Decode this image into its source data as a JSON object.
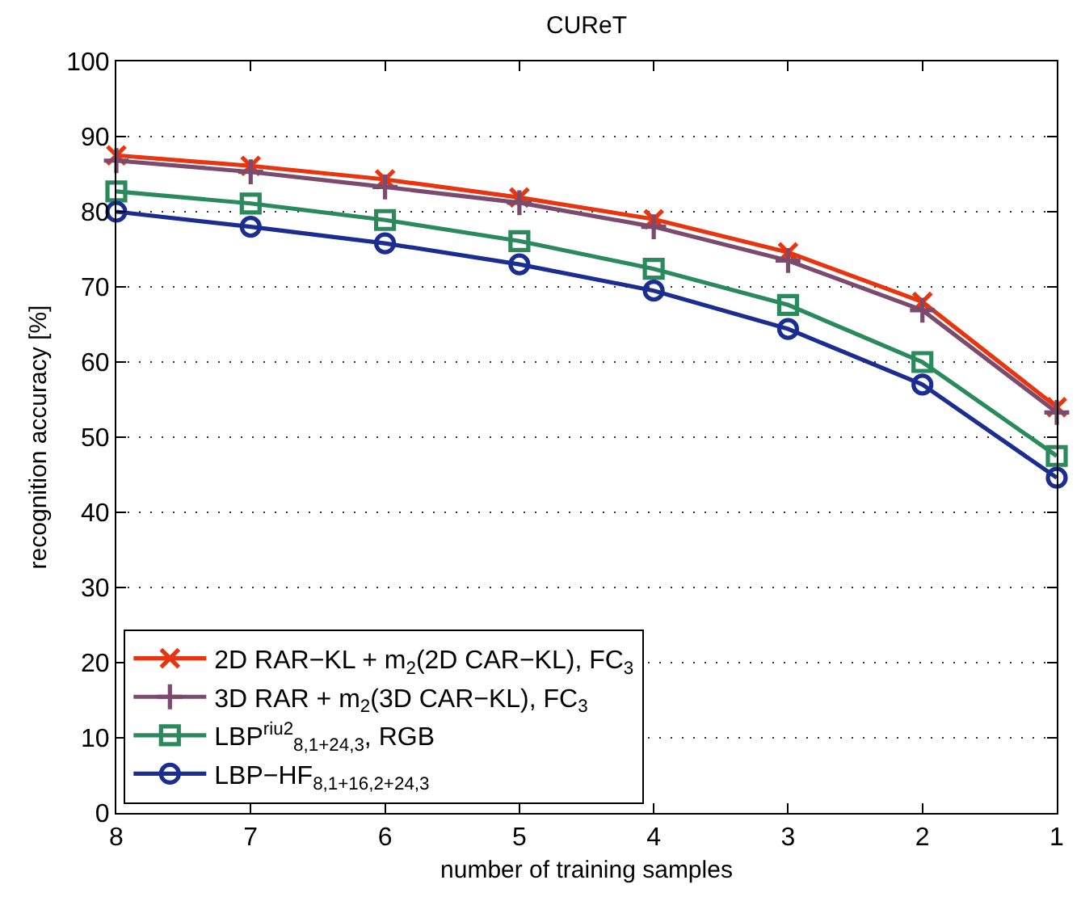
{
  "chart_data": {
    "type": "line",
    "title": "CUReT",
    "xlabel": "number of training samples",
    "ylabel": "recognition accuracy [%]",
    "x": [
      8,
      7,
      6,
      5,
      4,
      3,
      2,
      1
    ],
    "series": [
      {
        "name": "2D RAR−KL + m$_{2}$(2D CAR−KL), FC$_{3}$",
        "color": "#e8340f",
        "marker": "x",
        "values": [
          87.5,
          86.1,
          84.3,
          81.9,
          79.0,
          74.6,
          68.0,
          54.0
        ]
      },
      {
        "name": "3D RAR + m$_{2}$(3D CAR−KL), FC$_{3}$",
        "color": "#7b4a6c",
        "marker": "cross",
        "values": [
          86.8,
          85.3,
          83.3,
          81.2,
          78.0,
          73.5,
          66.9,
          53.3
        ]
      },
      {
        "name": "LBP$^{riu2}$$_{8,1+24,3}$, RGB",
        "color": "#2a8a5c",
        "marker": "square",
        "values": [
          82.7,
          81.1,
          78.9,
          76.1,
          72.4,
          67.6,
          60.0,
          47.5
        ]
      },
      {
        "name": "LBP−HF$_{8,1+16,2+24,3}$",
        "color": "#1c2d91",
        "marker": "circle",
        "values": [
          80.0,
          78.0,
          75.8,
          73.0,
          69.5,
          64.4,
          57.0,
          44.6
        ]
      }
    ],
    "xlim": [
      8,
      1
    ],
    "xticks": [
      8,
      7,
      6,
      5,
      4,
      3,
      2,
      1
    ],
    "ylim": [
      0,
      100
    ],
    "yticks": [
      0,
      10,
      20,
      30,
      40,
      50,
      60,
      70,
      80,
      90,
      100
    ],
    "grid": "y",
    "legend": "bottom left"
  }
}
